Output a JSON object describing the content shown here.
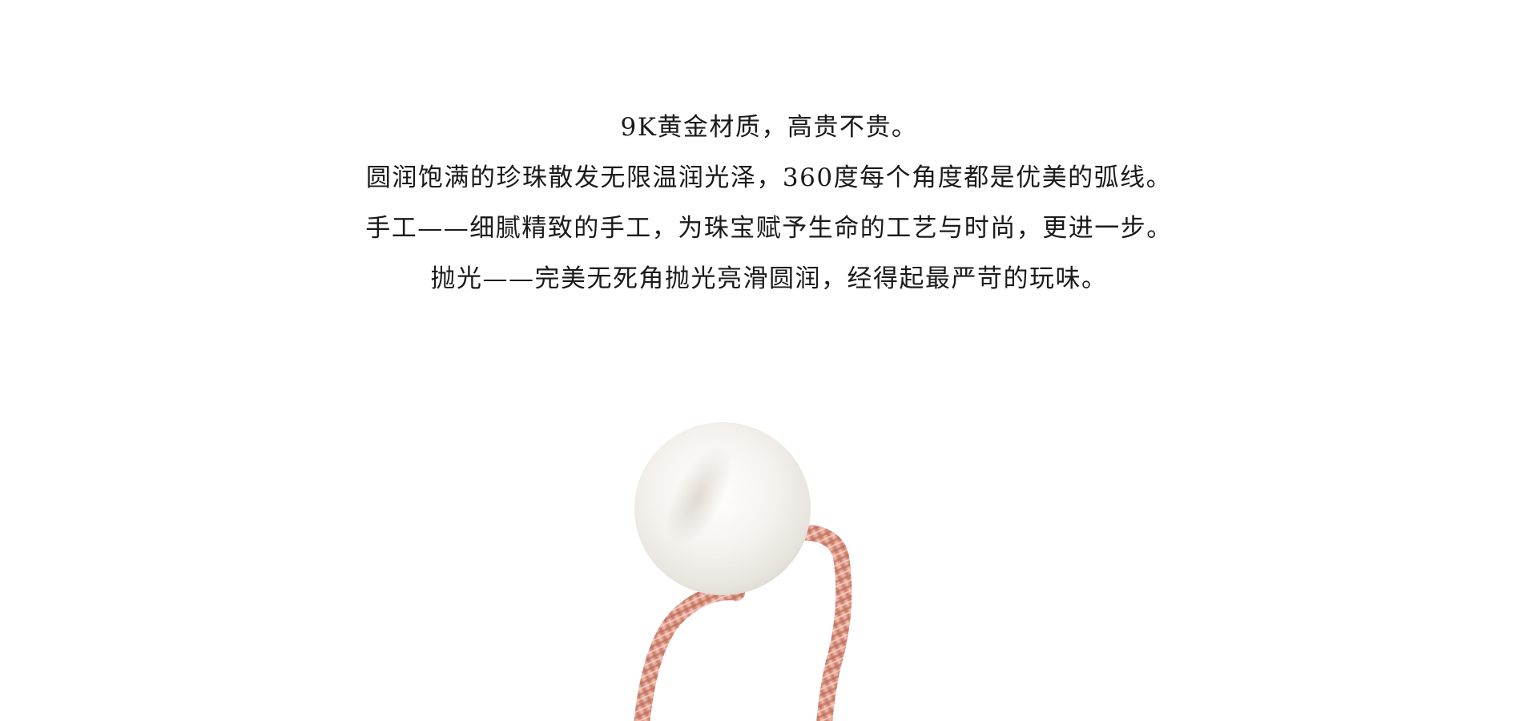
{
  "description": {
    "lines": [
      "9K黄金材质，高贵不贵。",
      "圆润饱满的珍珠散发无限温润光泽，360度每个角度都是优美的弧线。",
      "手工——细腻精致的手工，为珠宝赋予生命的工艺与时尚，更进一步。",
      "抛光——完美无死角抛光亮滑圆润，经得起最严苛的玩味。"
    ]
  },
  "colors": {
    "background": "#ffffff",
    "text": "#1a1a1a",
    "pearl": "#f4f1ec",
    "band": "#e4a394"
  }
}
